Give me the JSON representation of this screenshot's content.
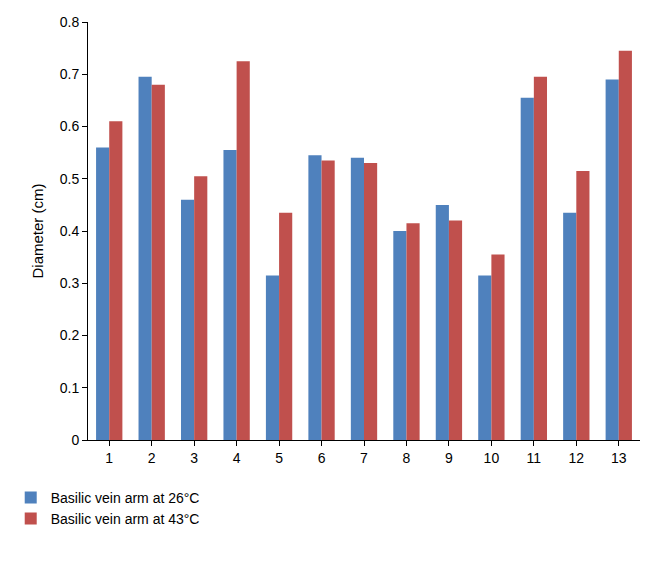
{
  "chart_data": {
    "type": "bar",
    "y_label": "Diameter (cm)",
    "categories": [
      "1",
      "2",
      "3",
      "4",
      "5",
      "6",
      "7",
      "8",
      "9",
      "10",
      "11",
      "12",
      "13"
    ],
    "series": [
      {
        "name": "Basilic vein arm at 26°C",
        "color": "#4f81bd",
        "values": [
          0.56,
          0.695,
          0.46,
          0.555,
          0.315,
          0.545,
          0.54,
          0.4,
          0.45,
          0.315,
          0.655,
          0.435,
          0.69
        ]
      },
      {
        "name": "Basilic vein arm at 43°C",
        "color": "#c0504d",
        "values": [
          0.61,
          0.68,
          0.505,
          0.725,
          0.435,
          0.535,
          0.53,
          0.415,
          0.42,
          0.355,
          0.695,
          0.515,
          0.745
        ]
      }
    ],
    "ylim": [
      0,
      0.8
    ],
    "yticks": [
      0,
      0.1,
      0.2,
      0.3,
      0.4,
      0.5,
      0.6,
      0.7,
      0.8
    ],
    "grid": false,
    "legend": "bottom left"
  }
}
